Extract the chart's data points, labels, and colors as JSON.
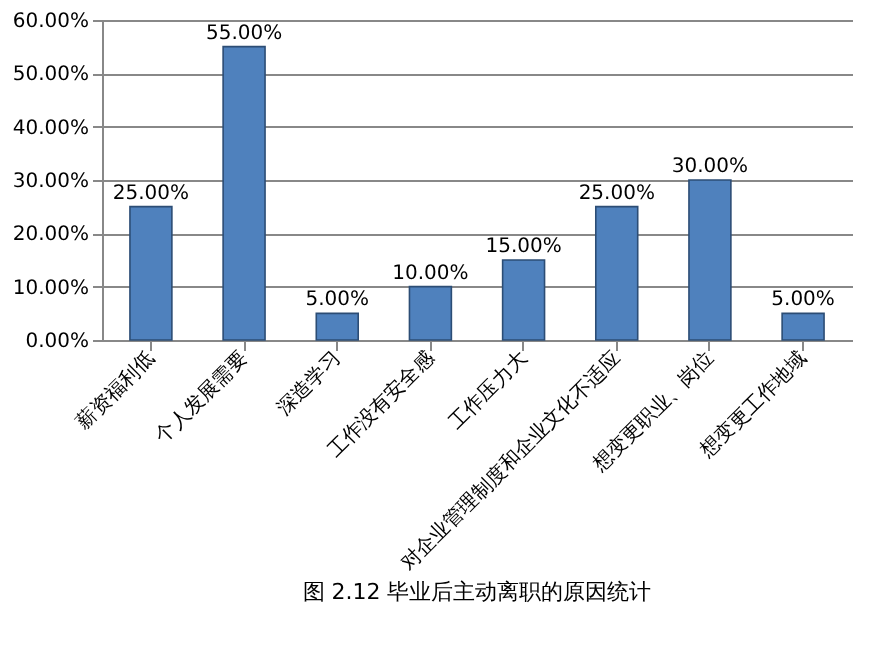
{
  "chart_data": {
    "type": "bar",
    "categories": [
      "薪资福利低",
      "个人发展需要",
      "深造学习",
      "工作没有安全感",
      "工作压力大",
      "对企业管理制度和企业文化不适应",
      "想变更职业、岗位",
      "想变更工作地域"
    ],
    "values": [
      25,
      55,
      5,
      10,
      15,
      25,
      30,
      5
    ],
    "value_labels": [
      "25.00%",
      "55.00%",
      "5.00%",
      "10.00%",
      "15.00%",
      "25.00%",
      "30.00%",
      "5.00%"
    ],
    "color": "#4f81bd",
    "ylim": [
      0,
      60
    ],
    "yticks": [
      {
        "value": 0,
        "label": "0.00%"
      },
      {
        "value": 10,
        "label": "10.00%"
      },
      {
        "value": 20,
        "label": "20.00%"
      },
      {
        "value": 30,
        "label": "30.00%"
      },
      {
        "value": 40,
        "label": "40.00%"
      },
      {
        "value": 50,
        "label": "50.00%"
      },
      {
        "value": 60,
        "label": "60.00%"
      }
    ],
    "grid": "y",
    "annotations": [
      "图 2.12  毕业后主动离职的原因统计"
    ]
  }
}
